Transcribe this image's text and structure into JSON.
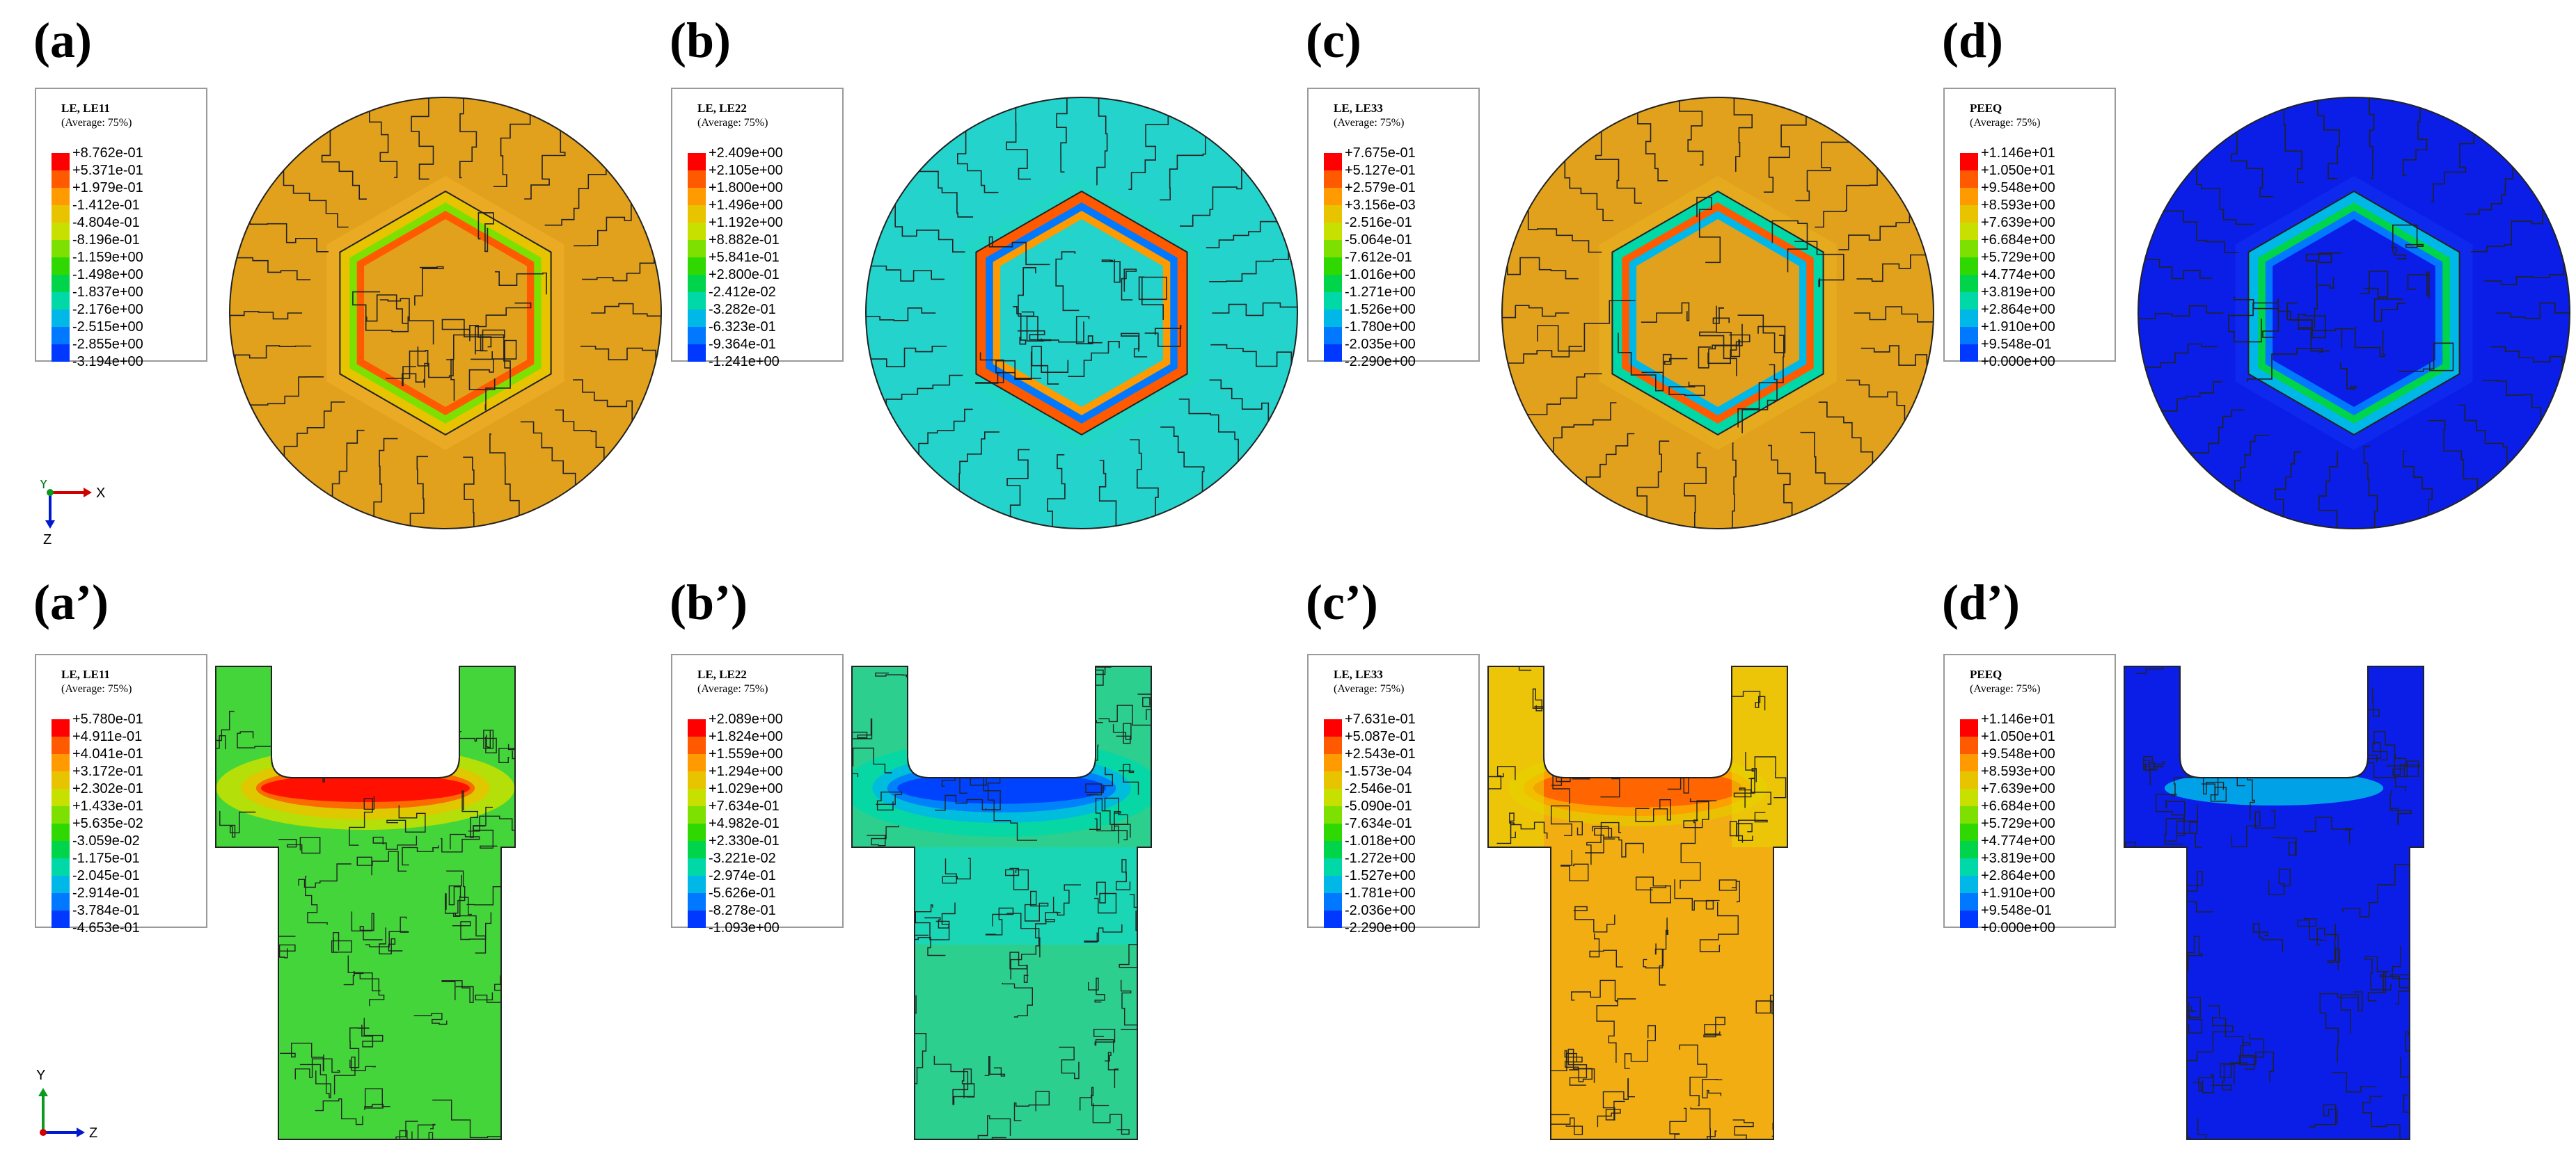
{
  "labels": {
    "a": "(a)",
    "b": "(b)",
    "c": "(c)",
    "d": "(d)",
    "a2": "(a’)",
    "b2": "(b’)",
    "c2": "(c’)",
    "d2": "(d’)"
  },
  "legends": {
    "a": {
      "title": "LE, LE11",
      "sub": "(Average: 75%)",
      "values": [
        "+8.762e-01",
        "+5.371e-01",
        "+1.979e-01",
        "-1.412e-01",
        "-4.804e-01",
        "-8.196e-01",
        "-1.159e+00",
        "-1.498e+00",
        "-1.837e+00",
        "-2.176e+00",
        "-2.515e+00",
        "-2.855e+00",
        "-3.194e+00"
      ]
    },
    "b": {
      "title": "LE, LE22",
      "sub": "(Average: 75%)",
      "values": [
        "+2.409e+00",
        "+2.105e+00",
        "+1.800e+00",
        "+1.496e+00",
        "+1.192e+00",
        "+8.882e-01",
        "+5.841e-01",
        "+2.800e-01",
        "-2.412e-02",
        "-3.282e-01",
        "-6.323e-01",
        "-9.364e-01",
        "-1.241e+00"
      ]
    },
    "c": {
      "title": "LE, LE33",
      "sub": "(Average: 75%)",
      "values": [
        "+7.675e-01",
        "+5.127e-01",
        "+2.579e-01",
        "+3.156e-03",
        "-2.516e-01",
        "-5.064e-01",
        "-7.612e-01",
        "-1.016e+00",
        "-1.271e+00",
        "-1.526e+00",
        "-1.780e+00",
        "-2.035e+00",
        "-2.290e+00"
      ]
    },
    "d": {
      "title": "PEEQ",
      "sub": "(Average: 75%)",
      "values": [
        "+1.146e+01",
        "+1.050e+01",
        "+9.548e+00",
        "+8.593e+00",
        "+7.639e+00",
        "+6.684e+00",
        "+5.729e+00",
        "+4.774e+00",
        "+3.819e+00",
        "+2.864e+00",
        "+1.910e+00",
        "+9.548e-01",
        "+0.000e+00"
      ]
    },
    "a2": {
      "title": "LE, LE11",
      "sub": "(Average: 75%)",
      "values": [
        "+5.780e-01",
        "+4.911e-01",
        "+4.041e-01",
        "+3.172e-01",
        "+2.302e-01",
        "+1.433e-01",
        "+5.635e-02",
        "-3.059e-02",
        "-1.175e-01",
        "-2.045e-01",
        "-2.914e-01",
        "-3.784e-01",
        "-4.653e-01"
      ]
    },
    "b2": {
      "title": "LE, LE22",
      "sub": "(Average: 75%)",
      "values": [
        "+2.089e+00",
        "+1.824e+00",
        "+1.559e+00",
        "+1.294e+00",
        "+1.029e+00",
        "+7.634e-01",
        "+4.982e-01",
        "+2.330e-01",
        "-3.221e-02",
        "-2.974e-01",
        "-5.626e-01",
        "-8.278e-01",
        "-1.093e+00"
      ]
    },
    "c2": {
      "title": "LE, LE33",
      "sub": "(Average: 75%)",
      "values": [
        "+7.631e-01",
        "+5.087e-01",
        "+2.543e-01",
        "-1.573e-04",
        "-2.546e-01",
        "-5.090e-01",
        "-7.634e-01",
        "-1.018e+00",
        "-1.272e+00",
        "-1.527e+00",
        "-1.781e+00",
        "-2.036e+00",
        "-2.290e+00"
      ]
    },
    "d2": {
      "title": "PEEQ",
      "sub": "(Average: 75%)",
      "values": [
        "+1.146e+01",
        "+1.050e+01",
        "+9.548e+00",
        "+8.593e+00",
        "+7.639e+00",
        "+6.684e+00",
        "+5.729e+00",
        "+4.774e+00",
        "+3.819e+00",
        "+2.864e+00",
        "+1.910e+00",
        "+9.548e-01",
        "+0.000e+00"
      ]
    }
  },
  "colorbar": [
    "#ff0000",
    "#ff5a00",
    "#ff9a00",
    "#e8c400",
    "#c8e000",
    "#7ee000",
    "#2fd800",
    "#00d44a",
    "#00d8a8",
    "#00b8e8",
    "#0078ff",
    "#0038ff",
    "#0000e0"
  ],
  "axes": {
    "top": {
      "horizontal": "X",
      "vertical": "Z",
      "corner": "Y"
    },
    "bottom": {
      "horizontal": "Z",
      "vertical": "Y"
    }
  },
  "fill_colors": {
    "a": "#e2a11c",
    "b": "#23d3cc",
    "c": "#e2a11c",
    "d": "#0a1ee8",
    "a2": "#43d53a",
    "b2": "#2ccf8e",
    "c2": "#f1ad12",
    "d2": "#0a1ee8"
  }
}
